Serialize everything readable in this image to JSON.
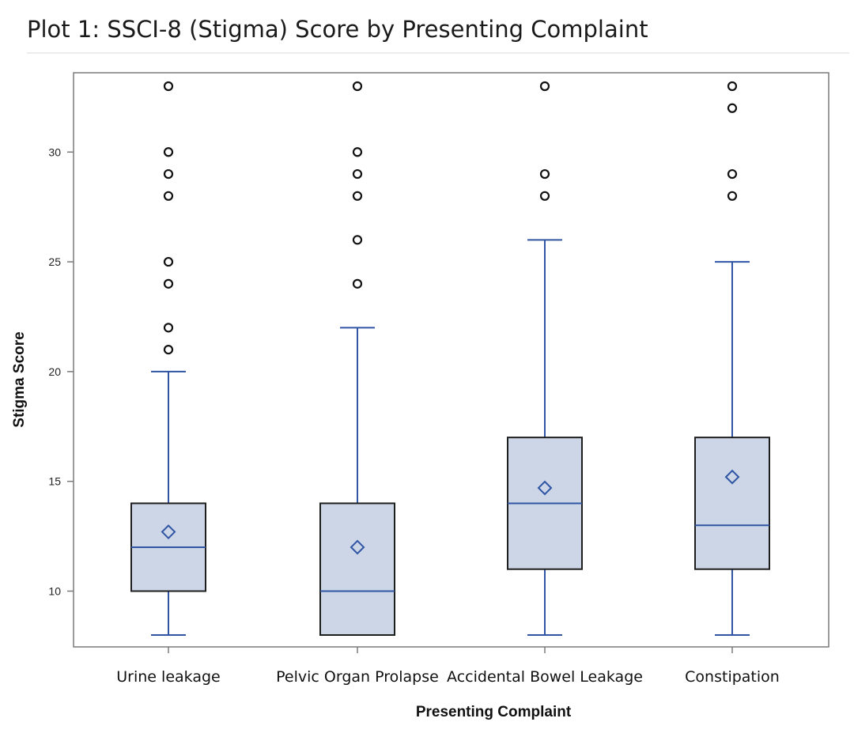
{
  "page": {
    "title": "Plot 1: SSCI-8 (Stigma) Score by Presenting Complaint"
  },
  "chart_data": {
    "type": "box",
    "title": "Plot 1: SSCI-8 (Stigma) Score by Presenting Complaint",
    "xlabel": "Presenting Complaint",
    "ylabel": "Stigma Score",
    "ylim": [
      7.5,
      33.5
    ],
    "yticks": [
      10,
      15,
      20,
      25,
      30
    ],
    "categories": [
      "Urine leakage",
      "Pelvic Organ Prolapse",
      "Accidental Bowel Leakage",
      "Constipation"
    ],
    "boxes": [
      {
        "category": "Urine leakage",
        "whisker_low": 8,
        "q1": 10,
        "median": 12,
        "q3": 14,
        "whisker_high": 20,
        "mean": 12.7,
        "outliers": [
          21,
          22,
          24,
          25,
          28,
          29,
          30,
          33
        ]
      },
      {
        "category": "Pelvic Organ Prolapse",
        "whisker_low": 8,
        "q1": 8,
        "median": 10,
        "q3": 14,
        "whisker_high": 22,
        "mean": 12.0,
        "outliers": [
          24,
          26,
          28,
          29,
          30,
          33
        ]
      },
      {
        "category": "Accidental Bowel Leakage",
        "whisker_low": 8,
        "q1": 11,
        "median": 14,
        "q3": 17,
        "whisker_high": 26,
        "mean": 14.7,
        "outliers": [
          28,
          29,
          33
        ]
      },
      {
        "category": "Constipation",
        "whisker_low": 8,
        "q1": 11,
        "median": 13,
        "q3": 17,
        "whisker_high": 25,
        "mean": 15.2,
        "outliers": [
          28,
          29,
          32,
          33
        ]
      }
    ],
    "grid": false,
    "legend": "none",
    "colors": {
      "box_fill": "#ccd6e6",
      "box_stroke": "#1e1e1e",
      "whisker": "#2f55a4",
      "mean_marker": "#2f55a4",
      "outlier": "#111111",
      "frame": "#7a7a7a"
    }
  }
}
